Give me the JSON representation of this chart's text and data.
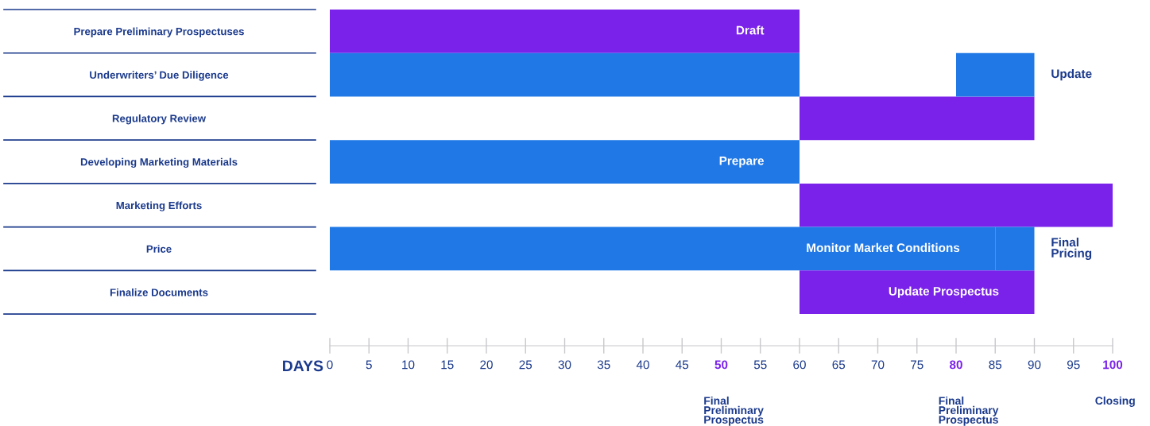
{
  "chart_data": {
    "type": "bar",
    "orientation": "horizontal",
    "categories": [
      "Prepare Preliminary Prospectuses",
      "Underwriters’ Due Diligence",
      "Regulatory Review",
      "Developing Marketing Materials",
      "Marketing Efforts",
      "Price",
      "Finalize Documents"
    ],
    "series": [
      {
        "base": [
          0,
          0,
          60,
          0,
          60,
          0,
          60
        ],
        "values": [
          60,
          60,
          30,
          60,
          40,
          85,
          30
        ],
        "colors": [
          "#7a22ea",
          "#1f78e6",
          "#7a22ea",
          "#1f78e6",
          "#7a22ea",
          "#1f78e6",
          "#7a22ea"
        ],
        "value_labels": [
          "Draft",
          null,
          null,
          "Prepare",
          null,
          "Monitor Market Conditions",
          "Update Prospectus"
        ]
      },
      {
        "base": [
          null,
          80,
          null,
          null,
          null,
          85,
          null
        ],
        "values": [
          null,
          10,
          null,
          null,
          null,
          5,
          null
        ],
        "colors": [
          null,
          "#1f78e6",
          null,
          null,
          null,
          "#1f78e6",
          null
        ],
        "value_labels": [
          null,
          "Update",
          null,
          null,
          null,
          "Final\nPricing",
          null
        ]
      }
    ],
    "xlabel": "DAYS",
    "xlim": [
      0,
      100
    ],
    "xticks": [
      0,
      5,
      10,
      15,
      20,
      25,
      30,
      35,
      40,
      45,
      {
        "value": 50,
        "label": "50"
      },
      55,
      60,
      65,
      70,
      75,
      {
        "value": 80,
        "label": "80"
      },
      85,
      90,
      95,
      {
        "value": 100,
        "label": "100"
      }
    ],
    "annotations": [
      "Final\nPreliminary\nProspectus",
      "Final\nPreliminary\nProspectus",
      "Closing"
    ],
    "grid": false,
    "legend": false
  }
}
